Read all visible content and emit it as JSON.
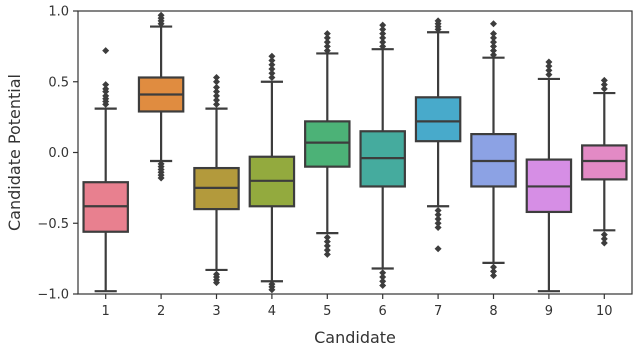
{
  "chart_data": {
    "type": "box",
    "title": "",
    "xlabel": "Candidate",
    "ylabel": "Candidate Potential",
    "ylim": [
      -1.0,
      1.0
    ],
    "yticks": [
      -1.0,
      -0.5,
      0.0,
      0.5,
      1.0
    ],
    "ytick_labels": [
      "−1.0",
      "−0.5",
      "0.0",
      "0.5",
      "1.0"
    ],
    "grid": false,
    "categories": [
      "1",
      "2",
      "3",
      "4",
      "5",
      "6",
      "7",
      "8",
      "9",
      "10"
    ],
    "boxes": [
      {
        "category": "1",
        "whisker_low": -0.98,
        "q1": -0.56,
        "median": -0.38,
        "q3": -0.21,
        "whisker_high": 0.31,
        "color": "#e8808f",
        "outliers_high": [
          0.34,
          0.36,
          0.38,
          0.4,
          0.43,
          0.45,
          0.48,
          0.72
        ],
        "outliers_low": []
      },
      {
        "category": "2",
        "whisker_low": -0.06,
        "q1": 0.29,
        "median": 0.41,
        "q3": 0.53,
        "whisker_high": 0.89,
        "color": "#e08c40",
        "outliers_high": [
          0.91,
          0.93,
          0.95,
          0.97
        ],
        "outliers_low": [
          -0.08,
          -0.1,
          -0.12,
          -0.14,
          -0.16,
          -0.18
        ]
      },
      {
        "category": "3",
        "whisker_low": -0.83,
        "q1": -0.4,
        "median": -0.25,
        "q3": -0.11,
        "whisker_high": 0.31,
        "color": "#b39a3c",
        "outliers_high": [
          0.34,
          0.37,
          0.4,
          0.43,
          0.46,
          0.5,
          0.53
        ],
        "outliers_low": [
          -0.86,
          -0.88,
          -0.9,
          -0.92
        ]
      },
      {
        "category": "4",
        "whisker_low": -0.91,
        "q1": -0.38,
        "median": -0.2,
        "q3": -0.03,
        "whisker_high": 0.5,
        "color": "#93aa3e",
        "outliers_high": [
          0.53,
          0.56,
          0.59,
          0.62,
          0.65,
          0.68
        ],
        "outliers_low": [
          -0.93,
          -0.95,
          -0.97
        ]
      },
      {
        "category": "5",
        "whisker_low": -0.57,
        "q1": -0.1,
        "median": 0.07,
        "q3": 0.22,
        "whisker_high": 0.7,
        "color": "#4cb277",
        "outliers_high": [
          0.72,
          0.75,
          0.78,
          0.81,
          0.84
        ],
        "outliers_low": [
          -0.6,
          -0.63,
          -0.66,
          -0.69,
          -0.72
        ]
      },
      {
        "category": "6",
        "whisker_low": -0.82,
        "q1": -0.24,
        "median": -0.04,
        "q3": 0.15,
        "whisker_high": 0.73,
        "color": "#45ab9e",
        "outliers_high": [
          0.75,
          0.78,
          0.81,
          0.84,
          0.87,
          0.9
        ],
        "outliers_low": [
          -0.85,
          -0.88,
          -0.91,
          -0.94
        ]
      },
      {
        "category": "7",
        "whisker_low": -0.38,
        "q1": 0.08,
        "median": 0.22,
        "q3": 0.39,
        "whisker_high": 0.85,
        "color": "#48aacb",
        "outliers_high": [
          0.87,
          0.89,
          0.91,
          0.93
        ],
        "outliers_low": [
          -0.41,
          -0.44,
          -0.47,
          -0.5,
          -0.53,
          -0.68
        ]
      },
      {
        "category": "8",
        "whisker_low": -0.78,
        "q1": -0.24,
        "median": -0.06,
        "q3": 0.13,
        "whisker_high": 0.67,
        "color": "#8ca2e4",
        "outliers_high": [
          0.69,
          0.72,
          0.75,
          0.78,
          0.81,
          0.84,
          0.91
        ],
        "outliers_low": [
          -0.81,
          -0.84,
          -0.87
        ]
      },
      {
        "category": "9",
        "whisker_low": -0.98,
        "q1": -0.42,
        "median": -0.24,
        "q3": -0.05,
        "whisker_high": 0.52,
        "color": "#d68ee5",
        "outliers_high": [
          0.55,
          0.58,
          0.61,
          0.64
        ],
        "outliers_low": []
      },
      {
        "category": "10",
        "whisker_low": -0.55,
        "q1": -0.19,
        "median": -0.06,
        "q3": 0.05,
        "whisker_high": 0.42,
        "color": "#e38ac5",
        "outliers_high": [
          0.45,
          0.48,
          0.51
        ],
        "outliers_low": [
          -0.58,
          -0.61,
          -0.64
        ]
      }
    ]
  }
}
